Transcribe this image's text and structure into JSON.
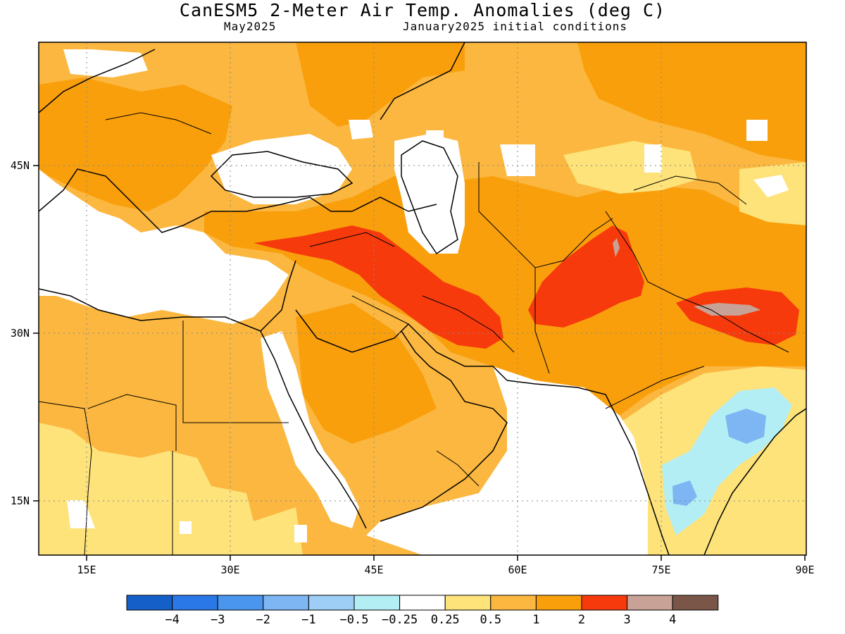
{
  "header": {
    "title": "CanESM5 2-Meter Air Temp. Anomalies (deg C)",
    "month": "May2025",
    "init": "January2025 initial conditions"
  },
  "axes": {
    "x_ticks": [
      "15E",
      "30E",
      "45E",
      "60E",
      "75E",
      "90E"
    ],
    "y_ticks": [
      "45N",
      "30N",
      "15N"
    ]
  },
  "colorbar": {
    "colors": [
      "#1560c8",
      "#2a78e8",
      "#4a96ef",
      "#7db6f2",
      "#9ecdf5",
      "#b4eef5",
      "#ffffff",
      "#fde37a",
      "#fbb73f",
      "#f99f0c",
      "#f73a0c",
      "#c8a296",
      "#7a5648"
    ],
    "labels": [
      "−4",
      "−3",
      "−2",
      "−1",
      "−0.5",
      "−0.25",
      "0.25",
      "0.5",
      "1",
      "2",
      "3",
      "4"
    ]
  }
}
